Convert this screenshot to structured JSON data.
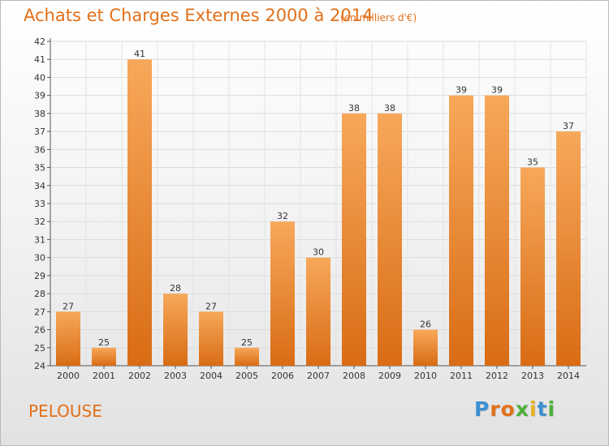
{
  "header": {
    "title": "Achats et Charges Externes 2000 à 2014",
    "subtitle": "(en milliers d'€)"
  },
  "footer": {
    "commune": "PELOUSE",
    "logo_letters": [
      "P",
      "r",
      "o",
      "x",
      "i",
      "t",
      "i"
    ]
  },
  "colors": {
    "accent": "#e2701a",
    "bar_light": "#f7a85a",
    "bar_dark": "#d96c15",
    "logo": [
      "#3a8fd1",
      "#e2701a",
      "#e2701a",
      "#4caf3a",
      "#e8b020",
      "#3a8fd1",
      "#4caf3a"
    ]
  },
  "chart_data": {
    "type": "bar",
    "title": "Achats et Charges Externes 2000 à 2014",
    "subtitle": "(en milliers d'€)",
    "xlabel": "",
    "ylabel": "",
    "categories": [
      "2000",
      "2001",
      "2002",
      "2003",
      "2004",
      "2005",
      "2006",
      "2007",
      "2008",
      "2009",
      "2010",
      "2011",
      "2012",
      "2013",
      "2014"
    ],
    "values": [
      27,
      25,
      41,
      28,
      27,
      25,
      32,
      30,
      38,
      38,
      26,
      39,
      39,
      35,
      37
    ],
    "ylim": [
      24,
      42
    ],
    "yticks": [
      24,
      25,
      26,
      27,
      28,
      29,
      30,
      31,
      32,
      33,
      34,
      35,
      36,
      37,
      38,
      39,
      40,
      41,
      42
    ],
    "grid": true,
    "legend": "none"
  }
}
